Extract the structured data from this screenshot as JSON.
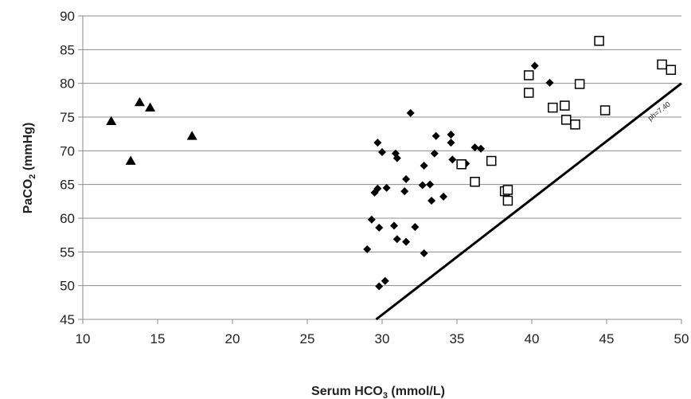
{
  "chart_data": {
    "type": "scatter",
    "xlabel": "Serum HCO",
    "xlabel_sub": "3",
    "xlabel_unit": " (mmol/L)",
    "ylabel": "PaCO",
    "ylabel_sub": "2",
    "ylabel_unit": " (mmHg)",
    "xlim": [
      10,
      50
    ],
    "ylim": [
      45,
      90
    ],
    "x_ticks": [
      "10",
      "15",
      "20",
      "25",
      "30",
      "35",
      "40",
      "45",
      "50"
    ],
    "y_ticks": [
      "45",
      "50",
      "55",
      "60",
      "65",
      "70",
      "75",
      "80",
      "85",
      "90"
    ],
    "grid": "horizontal",
    "series": [
      {
        "marker": "triangle",
        "color": "#000000",
        "points": [
          [
            11.9,
            74.4
          ],
          [
            13.2,
            68.5
          ],
          [
            13.8,
            77.2
          ],
          [
            14.5,
            76.4
          ],
          [
            17.3,
            72.2
          ]
        ]
      },
      {
        "marker": "diamond",
        "color": "#000000",
        "points": [
          [
            29.0,
            55.4
          ],
          [
            29.3,
            59.8
          ],
          [
            29.5,
            63.8
          ],
          [
            29.7,
            71.2
          ],
          [
            29.7,
            64.4
          ],
          [
            29.8,
            58.6
          ],
          [
            29.8,
            49.9
          ],
          [
            30.0,
            69.8
          ],
          [
            30.2,
            50.7
          ],
          [
            30.3,
            64.5
          ],
          [
            30.8,
            58.9
          ],
          [
            30.9,
            69.6
          ],
          [
            31.0,
            56.9
          ],
          [
            31.0,
            68.9
          ],
          [
            31.5,
            64.0
          ],
          [
            31.6,
            65.8
          ],
          [
            31.6,
            56.5
          ],
          [
            31.9,
            75.6
          ],
          [
            32.2,
            58.7
          ],
          [
            32.7,
            64.9
          ],
          [
            32.8,
            67.8
          ],
          [
            32.8,
            54.8
          ],
          [
            33.2,
            65.0
          ],
          [
            33.3,
            62.6
          ],
          [
            33.5,
            69.6
          ],
          [
            33.6,
            72.2
          ],
          [
            34.1,
            63.2
          ],
          [
            34.6,
            72.4
          ],
          [
            34.6,
            71.2
          ],
          [
            34.7,
            68.7
          ],
          [
            35.6,
            68.1
          ],
          [
            36.2,
            70.5
          ],
          [
            36.6,
            70.3
          ],
          [
            40.2,
            82.6
          ],
          [
            41.2,
            80.1
          ]
        ]
      },
      {
        "marker": "square",
        "color": "#000000",
        "points": [
          [
            35.3,
            68.0
          ],
          [
            36.2,
            65.4
          ],
          [
            37.3,
            68.5
          ],
          [
            38.2,
            64.0
          ],
          [
            38.4,
            64.2
          ],
          [
            38.4,
            62.6
          ],
          [
            39.8,
            81.2
          ],
          [
            39.8,
            78.6
          ],
          [
            41.4,
            76.4
          ],
          [
            42.2,
            76.7
          ],
          [
            42.3,
            74.6
          ],
          [
            42.9,
            73.9
          ],
          [
            43.2,
            79.9
          ],
          [
            44.5,
            86.3
          ],
          [
            44.9,
            76.0
          ],
          [
            48.7,
            82.8
          ],
          [
            49.3,
            82.0
          ]
        ]
      }
    ],
    "line": {
      "from": [
        29.6,
        45.0
      ],
      "to": [
        50.0,
        80.0
      ],
      "color": "#000000",
      "label": "ph=7.40",
      "label_at": [
        48.6,
        75.6
      ]
    }
  }
}
